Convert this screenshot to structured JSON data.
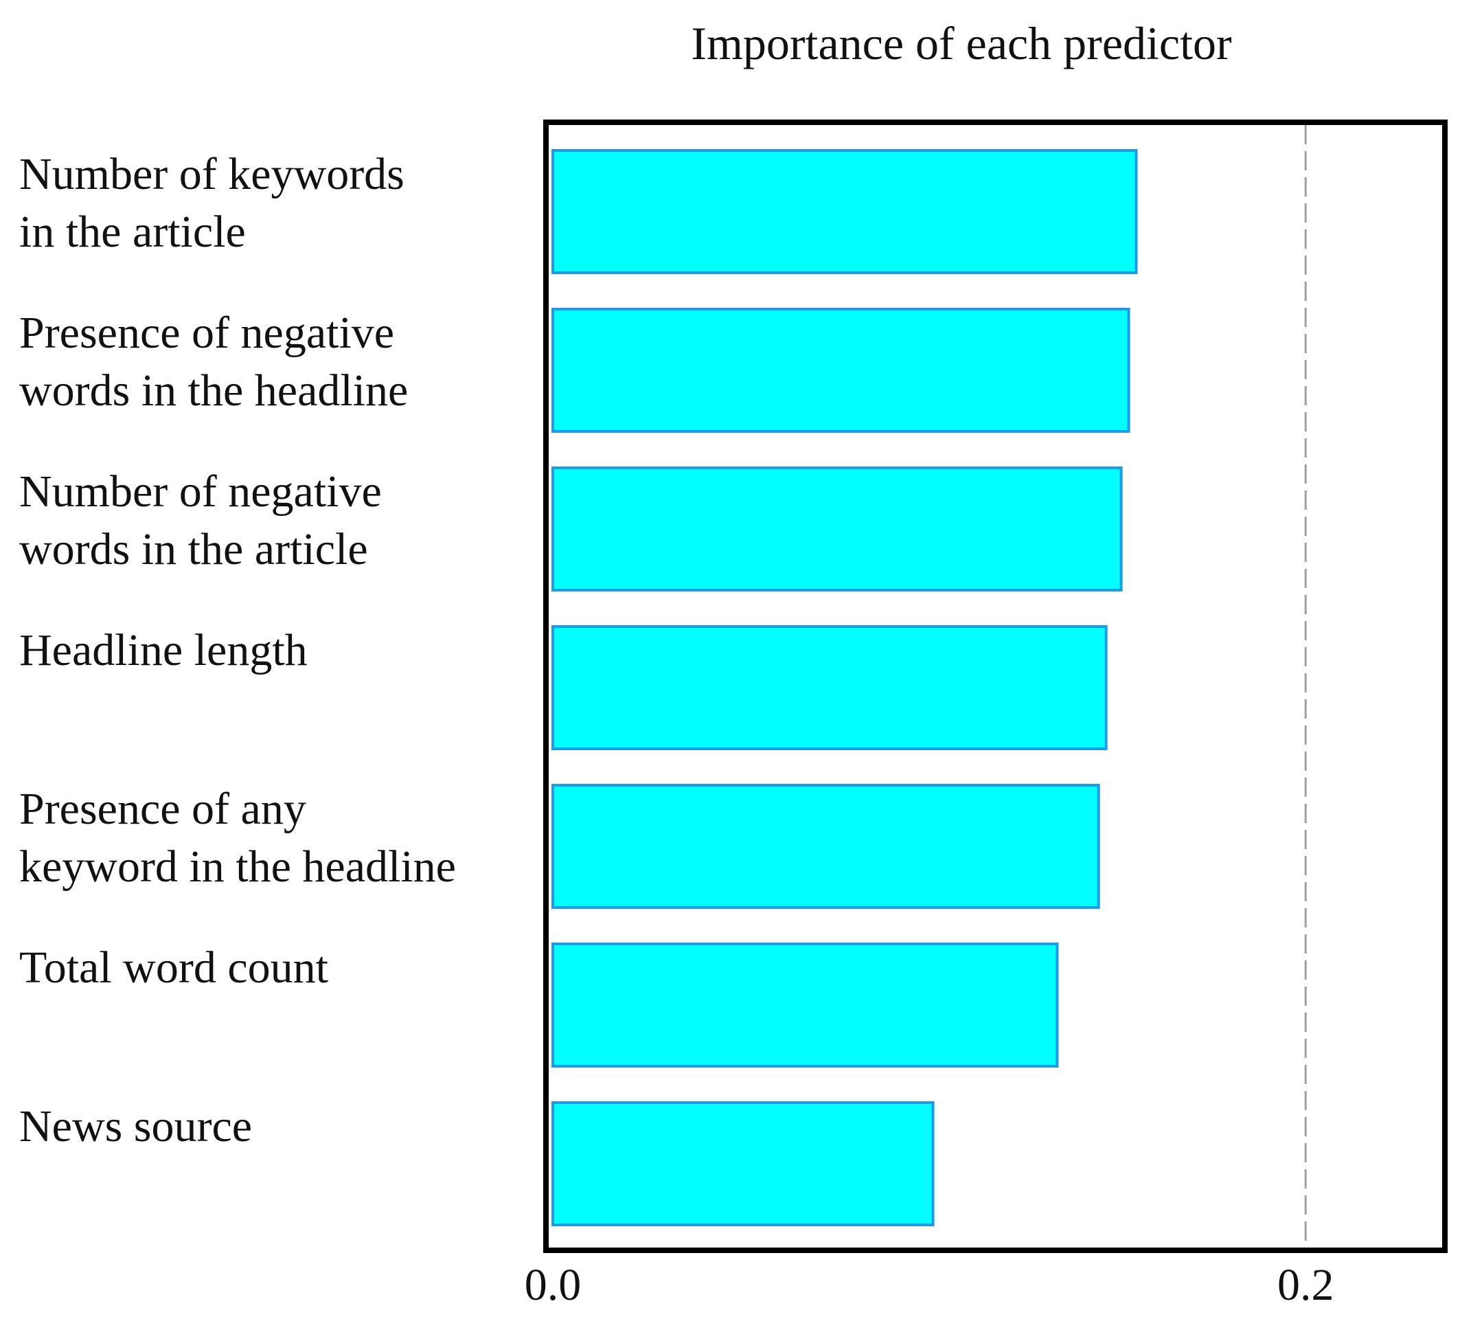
{
  "chart_data": {
    "type": "bar",
    "orientation": "horizontal",
    "title": "Importance of each predictor",
    "categories": [
      [
        "Number of keywords",
        "in the article"
      ],
      [
        "Presence of negative",
        "words in the headline"
      ],
      [
        "Number of negative",
        "words in the article"
      ],
      [
        "Headline length"
      ],
      [
        "Presence of any",
        "keyword in the headline"
      ],
      [
        "Total word count"
      ],
      [
        "News source"
      ]
    ],
    "values": [
      0.155,
      0.153,
      0.151,
      0.147,
      0.145,
      0.134,
      0.101
    ],
    "xlim": [
      0.0,
      0.237
    ],
    "xticks": [
      0.0,
      0.2
    ],
    "xtick_labels": [
      "0.0",
      "0.2"
    ],
    "reference_line": 0.2,
    "grid": false,
    "legend": "none",
    "colors": {
      "bar_fill": "#00ffff",
      "bar_edge": "#1e9be8",
      "frame": "#000000",
      "reference_line": "#a0a0a0"
    }
  }
}
